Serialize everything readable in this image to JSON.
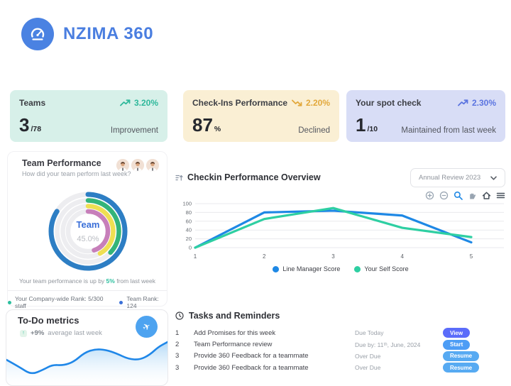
{
  "app": {
    "name": "NZIMA 360"
  },
  "stat_cards": [
    {
      "title": "Teams",
      "trend_direction": "up",
      "trend_value": "3.20%",
      "value": "3",
      "suffix": "/78",
      "caption": "Improvement",
      "bg": "#d7f0e9",
      "accent": "#2eb89b"
    },
    {
      "title": "Check-Ins Performance",
      "trend_direction": "down",
      "trend_value": "2.20%",
      "value": "87",
      "suffix": "%",
      "caption": "Declined",
      "bg": "#faefd4",
      "accent": "#e2a83b"
    },
    {
      "title": "Your spot check",
      "trend_direction": "up",
      "trend_value": "2.30%",
      "value": "1",
      "suffix": "/10",
      "caption": "Maintained from last week",
      "bg": "#d8ddf6",
      "accent": "#5b74e0"
    }
  ],
  "team_performance": {
    "title": "Team Performance",
    "subtitle": "How did your team perform last week?",
    "center_label": "Team",
    "center_value": "45.0%",
    "caption_prefix": "Your team performance is up by ",
    "caption_highlight": "5%",
    "caption_suffix": " from last week",
    "legend": [
      {
        "label": "Your Company-wide Rank: 5/300 staff",
        "color": "#2bbf9e"
      },
      {
        "label": "Team Rank: 124",
        "color": "#3a6fd8"
      }
    ],
    "chart_data": {
      "type": "radial",
      "center_label": "Team",
      "center_value": 45.0,
      "rings": [
        {
          "name": "outer",
          "color": "#2d7ec4",
          "percent": 84
        },
        {
          "name": "second",
          "color": "#34b479",
          "percent": 37
        },
        {
          "name": "third",
          "color": "#efdf52",
          "percent": 42
        },
        {
          "name": "inner",
          "color": "#c77fba",
          "percent": 45
        }
      ]
    }
  },
  "todo": {
    "title": "To-Do metrics",
    "delta": "+9%",
    "delta_caption": "average last week",
    "chart_data": {
      "type": "area",
      "color": "#1f87e8",
      "points": [
        [
          0,
          34
        ],
        [
          18,
          44
        ],
        [
          35,
          55
        ],
        [
          52,
          48
        ],
        [
          65,
          41
        ],
        [
          80,
          42
        ],
        [
          95,
          37
        ],
        [
          110,
          24
        ],
        [
          125,
          19
        ],
        [
          140,
          20
        ],
        [
          155,
          25
        ],
        [
          172,
          33
        ],
        [
          188,
          34
        ],
        [
          202,
          27
        ],
        [
          214,
          16
        ],
        [
          227,
          9
        ]
      ]
    }
  },
  "checkin": {
    "title": "Checkin Performance Overview",
    "filter_value": "Annual Review 2023",
    "toolbar_icons": [
      "zoom-in",
      "zoom-out",
      "box-zoom",
      "pan",
      "home",
      "menu"
    ],
    "chart_data": {
      "type": "line",
      "x": [
        1,
        2,
        3,
        4,
        5
      ],
      "ylim": [
        0,
        100
      ],
      "yticks": [
        0,
        20,
        40,
        60,
        80,
        100
      ],
      "grid": true,
      "legend_position": "bottom",
      "series": [
        {
          "name": "Line Manager Score",
          "color": "#1e88e5",
          "values": [
            0,
            80,
            84,
            73,
            12
          ]
        },
        {
          "name": "Your Self Score",
          "color": "#2ecfa2",
          "values": [
            0,
            65,
            90,
            45,
            24
          ]
        }
      ]
    }
  },
  "tasks": {
    "title": "Tasks and Reminders",
    "rows": [
      {
        "num": "1",
        "task": "Add Promises for this week",
        "due": "Due Today",
        "action": "View",
        "action_color": "#5b6cfa"
      },
      {
        "num": "2",
        "task": "Team Performance review",
        "due": "Due by: 11ᵗʰ, June, 2024",
        "action": "Start",
        "action_color": "#4d9df5"
      },
      {
        "num": "3",
        "task": "Provide 360 Feedback for a teammate",
        "due": "Over Due",
        "action": "Resume",
        "action_color": "#57aaf2"
      },
      {
        "num": "3",
        "task": "Provide 360 Feedback for a teammate",
        "due": "Over Due",
        "action": "Resume",
        "action_color": "#57aaf2"
      }
    ]
  }
}
